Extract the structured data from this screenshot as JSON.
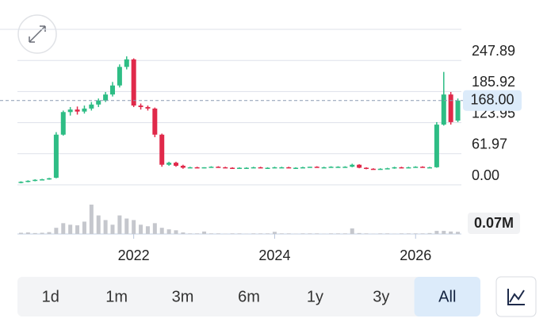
{
  "chart_data": {
    "type": "candlestick",
    "x": [
      2020.4,
      2020.5,
      2020.6,
      2020.7,
      2020.8,
      2020.9,
      2021.0,
      2021.1,
      2021.2,
      2021.3,
      2021.4,
      2021.5,
      2021.6,
      2021.7,
      2021.8,
      2021.9,
      2022.0,
      2022.1,
      2022.2,
      2022.3,
      2022.4,
      2022.5,
      2022.6,
      2022.7,
      2022.8,
      2022.9,
      2023.0,
      2023.1,
      2023.2,
      2023.3,
      2023.4,
      2023.5,
      2023.6,
      2023.7,
      2023.8,
      2023.9,
      2024.0,
      2024.1,
      2024.2,
      2024.3,
      2024.4,
      2024.5,
      2024.6,
      2024.7,
      2024.8,
      2024.9,
      2025.0,
      2025.1,
      2025.2,
      2025.3,
      2025.4,
      2025.5,
      2025.6,
      2025.7,
      2025.8,
      2025.9,
      2026.0,
      2026.1,
      2026.2,
      2026.3,
      2026.4,
      2026.5,
      2026.6
    ],
    "open": [
      4,
      6,
      8,
      10,
      11,
      14,
      100,
      145,
      150,
      146,
      152,
      160,
      168,
      180,
      198,
      235,
      250,
      158,
      155,
      152,
      100,
      40,
      44,
      38,
      34,
      35,
      34,
      35,
      36,
      35,
      34,
      33,
      34,
      34,
      35,
      34,
      34,
      35,
      35,
      34,
      34,
      35,
      36,
      35,
      35,
      36,
      36,
      36,
      40,
      34,
      32,
      31,
      32,
      33,
      35,
      34,
      35,
      36,
      35,
      35,
      120,
      180,
      128
    ],
    "high": [
      7,
      9,
      11,
      12,
      14,
      105,
      148,
      155,
      156,
      158,
      165,
      172,
      185,
      205,
      240,
      256,
      252,
      162,
      158,
      154,
      102,
      46,
      46,
      40,
      36,
      36,
      35,
      37,
      37,
      36,
      35,
      35,
      35,
      36,
      36,
      35,
      36,
      36,
      36,
      35,
      36,
      36,
      37,
      36,
      37,
      37,
      37,
      42,
      41,
      35,
      33,
      33,
      34,
      36,
      36,
      36,
      37,
      37,
      36,
      125,
      225,
      185,
      172
    ],
    "low": [
      3,
      5,
      7,
      9,
      10,
      13,
      98,
      138,
      140,
      142,
      148,
      155,
      165,
      176,
      194,
      230,
      155,
      150,
      148,
      95,
      36,
      38,
      36,
      32,
      33,
      33,
      33,
      34,
      34,
      33,
      32,
      32,
      33,
      33,
      33,
      33,
      33,
      34,
      33,
      33,
      33,
      34,
      34,
      34,
      34,
      35,
      35,
      35,
      33,
      31,
      30,
      30,
      31,
      32,
      33,
      33,
      34,
      34,
      34,
      34,
      118,
      120,
      125
    ],
    "close": [
      6,
      8,
      10,
      11,
      13,
      100,
      145,
      150,
      146,
      152,
      160,
      168,
      180,
      198,
      235,
      250,
      158,
      155,
      152,
      100,
      40,
      44,
      38,
      34,
      35,
      34,
      35,
      36,
      35,
      34,
      33,
      34,
      34,
      35,
      34,
      34,
      35,
      35,
      34,
      34,
      35,
      36,
      35,
      35,
      36,
      36,
      36,
      40,
      34,
      32,
      31,
      32,
      33,
      35,
      34,
      35,
      36,
      35,
      35,
      120,
      180,
      125,
      168
    ],
    "volume": [
      0.04,
      0.05,
      0.03,
      0.04,
      0.06,
      0.2,
      0.35,
      0.3,
      0.28,
      0.4,
      0.95,
      0.6,
      0.45,
      0.3,
      0.6,
      0.5,
      0.45,
      0.3,
      0.25,
      0.35,
      0.2,
      0.15,
      0.12,
      0.05,
      0.02,
      0.02,
      0.08,
      0.02,
      0.02,
      0.01,
      0.02,
      0.02,
      0.01,
      0.02,
      0.02,
      0.02,
      0.07,
      0.02,
      0.02,
      0.01,
      0.02,
      0.02,
      0.02,
      0.01,
      0.02,
      0.02,
      0.02,
      0.18,
      0.03,
      0.02,
      0.01,
      0.02,
      0.02,
      0.01,
      0.02,
      0.02,
      0.02,
      0.02,
      0.03,
      0.1,
      0.1,
      0.08,
      0.07
    ],
    "up_color": "#2ebd85",
    "down_color": "#e0294a",
    "volume_color": "#c5c7cd",
    "xlim": [
      2020.35,
      2026.65
    ],
    "xticks": [
      2022,
      2024,
      2026
    ],
    "ylim": [
      0,
      309.86
    ],
    "yticks": [
      {
        "value": 0,
        "label": "0.00"
      },
      61.97,
      123.95,
      185.92,
      247.89
    ],
    "volume_lim": [
      0,
      1
    ],
    "grid": true,
    "current_price": {
      "value": 168,
      "label": "168.00"
    },
    "current_volume": {
      "value": 0.07,
      "label": "0.07M"
    }
  },
  "range_buttons": [
    "1d",
    "1m",
    "3m",
    "6m",
    "1y",
    "3y",
    "All"
  ],
  "selected_range": "All"
}
